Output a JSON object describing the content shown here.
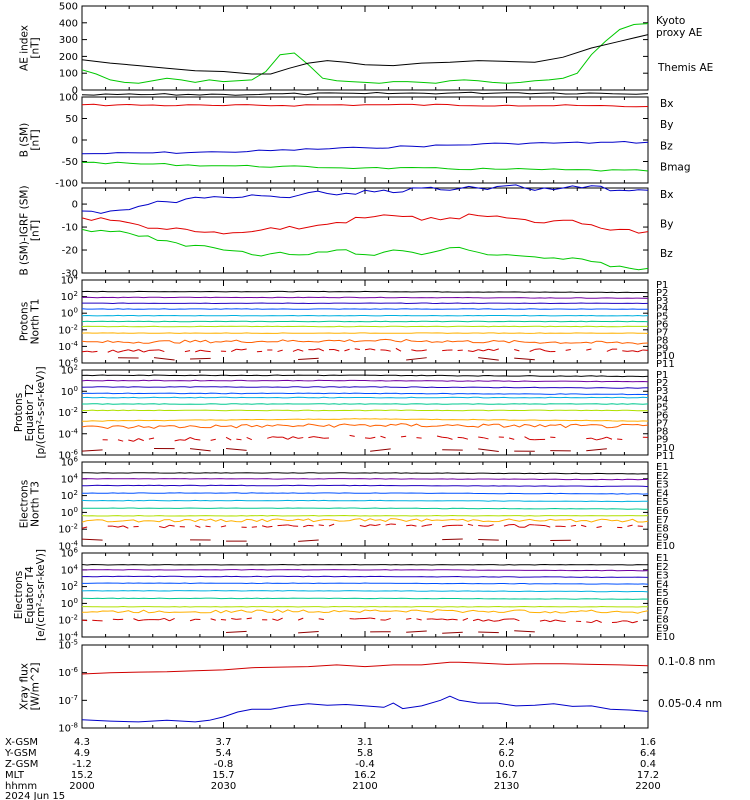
{
  "chart_data": [
    {
      "type": "line",
      "ylabel": "AE index\n[nT]",
      "ylim": [
        0,
        500
      ],
      "yticks": [
        "0",
        "100",
        "200",
        "300",
        "400",
        "500"
      ],
      "series": [
        {
          "name": "Kyoto proxy AE",
          "color": "#00c800",
          "x": [
            0,
            3,
            6,
            9,
            12,
            15,
            18,
            21,
            24,
            27,
            30,
            33,
            36,
            39,
            42,
            45,
            48,
            51,
            54,
            57,
            60,
            63,
            66,
            69,
            72,
            75,
            78,
            81,
            84,
            87,
            90,
            93,
            96,
            99,
            102,
            105,
            108,
            111,
            114,
            117,
            120
          ],
          "values": [
            120,
            95,
            60,
            45,
            40,
            55,
            70,
            60,
            45,
            60,
            50,
            55,
            60,
            110,
            210,
            220,
            150,
            70,
            55,
            50,
            45,
            40,
            50,
            50,
            45,
            40,
            55,
            60,
            55,
            45,
            40,
            45,
            55,
            60,
            70,
            100,
            210,
            290,
            360,
            390,
            395
          ]
        },
        {
          "name": "Themis AE",
          "color": "#000000",
          "x": [
            0,
            6,
            12,
            18,
            24,
            30,
            36,
            40,
            44,
            48,
            52,
            56,
            60,
            66,
            72,
            78,
            84,
            90,
            96,
            102,
            108,
            114,
            120
          ],
          "values": [
            180,
            160,
            145,
            130,
            115,
            110,
            95,
            95,
            130,
            160,
            175,
            165,
            150,
            145,
            160,
            165,
            175,
            170,
            165,
            195,
            250,
            290,
            330
          ]
        }
      ]
    },
    {
      "type": "line",
      "ylabel": "B (SM)\n[nT]",
      "ylim": [
        -100,
        100
      ],
      "yticks": [
        "-100",
        "-50",
        "0",
        "50",
        "100"
      ],
      "series": [
        {
          "name": "Bx",
          "color": "#0000c8",
          "x": [
            0,
            30,
            60,
            90,
            120
          ],
          "values": [
            -32,
            -28,
            -18,
            -8,
            -5
          ]
        },
        {
          "name": "By",
          "color": "#e00000",
          "x": [
            0,
            30,
            60,
            90,
            120
          ],
          "values": [
            82,
            80,
            82,
            81,
            78
          ]
        },
        {
          "name": "Bz",
          "color": "#00c800",
          "x": [
            0,
            30,
            60,
            90,
            120
          ],
          "values": [
            -52,
            -60,
            -65,
            -68,
            -72
          ]
        },
        {
          "name": "Bmag",
          "color": "#000000",
          "x": [
            0,
            30,
            60,
            90,
            120
          ],
          "values": [
            105,
            106,
            108,
            110,
            108
          ]
        }
      ]
    },
    {
      "type": "line",
      "ylabel": "B (SM)-IGRF (SM)\n[nT]",
      "ylim": [
        -30,
        7
      ],
      "yticks": [
        "-30",
        "-20",
        "-10",
        "0"
      ],
      "series": [
        {
          "name": "Bx",
          "color": "#0000c8",
          "x": [
            0,
            6,
            12,
            18,
            24,
            30,
            36,
            42,
            48,
            54,
            60,
            66,
            72,
            78,
            84,
            90,
            96,
            102,
            108,
            114,
            120
          ],
          "values": [
            -3,
            -3,
            -1,
            1,
            3,
            3,
            4,
            3,
            5,
            4,
            6,
            5,
            7,
            6,
            7,
            8,
            6,
            7,
            8,
            6,
            6
          ]
        },
        {
          "name": "By",
          "color": "#e00000",
          "x": [
            0,
            6,
            12,
            18,
            24,
            30,
            36,
            42,
            48,
            54,
            60,
            66,
            72,
            78,
            84,
            90,
            96,
            102,
            108,
            114,
            120
          ],
          "values": [
            -6,
            -7,
            -9,
            -11,
            -12,
            -13,
            -12,
            -11,
            -10,
            -8,
            -6,
            -5,
            -7,
            -6,
            -5,
            -6,
            -8,
            -7,
            -9,
            -11,
            -12
          ]
        },
        {
          "name": "Bz",
          "color": "#00c800",
          "x": [
            0,
            6,
            12,
            18,
            24,
            30,
            36,
            42,
            48,
            54,
            60,
            66,
            72,
            78,
            84,
            90,
            96,
            102,
            108,
            114,
            120
          ],
          "values": [
            -11,
            -12,
            -14,
            -16,
            -18,
            -20,
            -22,
            -21,
            -22,
            -20,
            -22,
            -20,
            -22,
            -19,
            -21,
            -22,
            -23,
            -24,
            -25,
            -27,
            -28
          ]
        }
      ]
    },
    {
      "type": "line",
      "ylabel": "Protons\nNorth T1",
      "ylim_log": [
        -6,
        4
      ],
      "yticks": [
        "10^-6",
        "10^-4",
        "10^-2",
        "10^0",
        "10^2",
        "10^4"
      ],
      "series": [
        {
          "name": "P1",
          "color": "#000000",
          "log_values": [
            2.6,
            2.6,
            2.5
          ]
        },
        {
          "name": "P2",
          "color": "#7000a0",
          "log_values": [
            1.9,
            1.9,
            1.8
          ]
        },
        {
          "name": "P3",
          "color": "#2000c0",
          "log_values": [
            1.2,
            1.2,
            1.2
          ]
        },
        {
          "name": "P4",
          "color": "#0050ff",
          "log_values": [
            0.5,
            0.5,
            0.5
          ]
        },
        {
          "name": "P5",
          "color": "#00b0e0",
          "log_values": [
            -0.3,
            -0.3,
            -0.3
          ]
        },
        {
          "name": "P6",
          "color": "#00c890",
          "log_values": [
            -1.0,
            -1.0,
            -1.0
          ]
        },
        {
          "name": "P7",
          "color": "#b0e000",
          "log_values": [
            -1.6,
            -1.6,
            -1.6
          ]
        },
        {
          "name": "P8",
          "color": "#ffb000",
          "log_values": [
            -2.4,
            -2.4,
            -2.4
          ]
        },
        {
          "name": "P9",
          "color": "#ff6000",
          "log_values": [
            -3.5,
            -3.3,
            -3.6
          ]
        },
        {
          "name": "P10",
          "color": "#d00000",
          "log_values": [
            -4.6,
            -4.4,
            -4.5
          ]
        },
        {
          "name": "P11",
          "color": "#900000",
          "log_values": [
            -5.5,
            -5.5,
            -5.5
          ]
        }
      ]
    },
    {
      "type": "line",
      "ylabel": "Protons\nEquator T2\n[p/(cm²-s-sr-keV)]",
      "ylim_log": [
        -6,
        2
      ],
      "yticks": [
        "10^-6",
        "10^-4",
        "10^-2",
        "10^0",
        "10^2"
      ],
      "series": [
        {
          "name": "P1",
          "color": "#000000",
          "log_values": [
            1.5,
            1.5,
            1.4
          ]
        },
        {
          "name": "P2",
          "color": "#7000a0",
          "log_values": [
            1.0,
            1.0,
            0.9
          ]
        },
        {
          "name": "P3",
          "color": "#2000c0",
          "log_values": [
            0.4,
            0.4,
            0.3
          ]
        },
        {
          "name": "P4",
          "color": "#0050ff",
          "log_values": [
            -0.2,
            -0.2,
            -0.3
          ]
        },
        {
          "name": "P5",
          "color": "#00b0e0",
          "log_values": [
            -0.6,
            -0.6,
            -0.6
          ]
        },
        {
          "name": "P6",
          "color": "#00c890",
          "log_values": [
            -1.2,
            -1.2,
            -1.2
          ]
        },
        {
          "name": "P7",
          "color": "#b0e000",
          "log_values": [
            -1.8,
            -1.8,
            -1.8
          ]
        },
        {
          "name": "P8",
          "color": "#ffb000",
          "log_values": [
            -2.8,
            -2.6,
            -2.8
          ]
        },
        {
          "name": "P9",
          "color": "#ff6000",
          "log_values": [
            -3.4,
            -3.2,
            -3.3
          ]
        },
        {
          "name": "P10",
          "color": "#d00000",
          "log_values": [
            -4.6,
            -4.3,
            -4.5
          ]
        },
        {
          "name": "P11",
          "color": "#900000",
          "log_values": [
            -5.5,
            -5.5,
            -5.5
          ]
        }
      ]
    },
    {
      "type": "line",
      "ylabel": "Electrons\nNorth T3",
      "ylim_log": [
        -4,
        6
      ],
      "yticks": [
        "10^-4",
        "10^-2",
        "10^0",
        "10^2",
        "10^4",
        "10^6"
      ],
      "series": [
        {
          "name": "E1",
          "color": "#000000",
          "log_values": [
            4.7,
            4.7,
            4.6
          ]
        },
        {
          "name": "E2",
          "color": "#7000a0",
          "log_values": [
            4.0,
            4.0,
            3.9
          ]
        },
        {
          "name": "E3",
          "color": "#2000c0",
          "log_values": [
            3.2,
            3.2,
            3.1
          ]
        },
        {
          "name": "E4",
          "color": "#0050ff",
          "log_values": [
            2.3,
            2.3,
            2.2
          ]
        },
        {
          "name": "E5",
          "color": "#00b0e0",
          "log_values": [
            1.4,
            1.4,
            1.3
          ]
        },
        {
          "name": "E6",
          "color": "#00c890",
          "log_values": [
            0.5,
            0.5,
            0.4
          ]
        },
        {
          "name": "E7",
          "color": "#b0e000",
          "log_values": [
            -0.4,
            -0.4,
            -0.4
          ]
        },
        {
          "name": "E8",
          "color": "#ffb000",
          "log_values": [
            -1.0,
            -0.9,
            -1.0
          ]
        },
        {
          "name": "E9",
          "color": "#d00000",
          "log_values": [
            -1.8,
            -1.5,
            -1.7
          ]
        },
        {
          "name": "E10",
          "color": "#900000",
          "log_values": [
            -3.3,
            -3.3,
            -3.3
          ]
        }
      ]
    },
    {
      "type": "line",
      "ylabel": "Electrons\nEquator T4\n[e/(cm²-s-sr-keV)]",
      "ylim_log": [
        -4,
        6
      ],
      "yticks": [
        "10^-4",
        "10^-2",
        "10^0",
        "10^2",
        "10^4",
        "10^6"
      ],
      "series": [
        {
          "name": "E1",
          "color": "#000000",
          "log_values": [
            4.6,
            4.6,
            4.6
          ]
        },
        {
          "name": "E2",
          "color": "#7000a0",
          "log_values": [
            4.0,
            4.0,
            3.9
          ]
        },
        {
          "name": "E3",
          "color": "#2000c0",
          "log_values": [
            3.2,
            3.2,
            3.1
          ]
        },
        {
          "name": "E4",
          "color": "#0050ff",
          "log_values": [
            2.4,
            2.4,
            2.3
          ]
        },
        {
          "name": "E5",
          "color": "#00b0e0",
          "log_values": [
            1.5,
            1.5,
            1.4
          ]
        },
        {
          "name": "E6",
          "color": "#00c890",
          "log_values": [
            0.6,
            0.6,
            0.5
          ]
        },
        {
          "name": "E7",
          "color": "#b0e000",
          "log_values": [
            -0.4,
            -0.4,
            -0.4
          ]
        },
        {
          "name": "E8",
          "color": "#ffb000",
          "log_values": [
            -1.0,
            -0.9,
            -1.0
          ]
        },
        {
          "name": "E9",
          "color": "#d00000",
          "log_values": [
            -2.0,
            -1.8,
            -2.2
          ]
        },
        {
          "name": "E10",
          "color": "#900000",
          "log_values": [
            -3.4,
            -3.4,
            -3.4
          ]
        }
      ]
    },
    {
      "type": "line",
      "ylabel": "Xray flux\n[W/m^2]",
      "ylim_log": [
        -8,
        -5
      ],
      "yticks": [
        "10^-8",
        "10^-7",
        "10^-6",
        "10^-5"
      ],
      "series": [
        {
          "name": "0.1-0.8 nm",
          "color": "#d00000",
          "x": [
            0,
            6,
            12,
            18,
            24,
            30,
            36,
            42,
            48,
            54,
            60,
            66,
            72,
            78,
            80,
            84,
            90,
            96,
            102,
            108,
            114,
            120
          ],
          "log_values": [
            -6.05,
            -6.0,
            -5.98,
            -5.97,
            -5.93,
            -5.9,
            -5.82,
            -5.8,
            -5.78,
            -5.72,
            -5.78,
            -5.72,
            -5.72,
            -5.62,
            -5.62,
            -5.65,
            -5.7,
            -5.68,
            -5.68,
            -5.7,
            -5.72,
            -5.75
          ]
        },
        {
          "name": "0.05-0.4 nm",
          "color": "#0000c8",
          "x": [
            0,
            6,
            12,
            18,
            24,
            27,
            30,
            33,
            36,
            40,
            44,
            48,
            52,
            56,
            60,
            64,
            66,
            68,
            72,
            76,
            78,
            80,
            84,
            88,
            92,
            96,
            100,
            104,
            108,
            112,
            116,
            120
          ],
          "log_values": [
            -7.7,
            -7.75,
            -7.78,
            -7.72,
            -7.78,
            -7.72,
            -7.6,
            -7.42,
            -7.32,
            -7.32,
            -7.2,
            -7.12,
            -7.18,
            -7.15,
            -7.2,
            -7.25,
            -7.1,
            -7.3,
            -7.2,
            -7.0,
            -6.85,
            -7.0,
            -7.1,
            -7.1,
            -7.2,
            -7.18,
            -7.12,
            -7.22,
            -7.2,
            -7.32,
            -7.35,
            -7.4
          ]
        }
      ]
    }
  ],
  "xaxis": {
    "row_labels": [
      "X-GSM",
      "Y-GSM",
      "Z-GSM",
      "MLT",
      "hhmm"
    ],
    "ticks": [
      {
        "x-gsm": "4.3",
        "y-gsm": "4.9",
        "z-gsm": "-1.2",
        "mlt": "15.2",
        "hhmm": "2000"
      },
      {
        "x-gsm": "3.7",
        "y-gsm": "5.4",
        "z-gsm": "-0.8",
        "mlt": "15.7",
        "hhmm": "2030"
      },
      {
        "x-gsm": "3.1",
        "y-gsm": "5.8",
        "z-gsm": "-0.4",
        "mlt": "16.2",
        "hhmm": "2100"
      },
      {
        "x-gsm": "2.4",
        "y-gsm": "6.2",
        "z-gsm": "0.0",
        "mlt": "16.7",
        "hhmm": "2130"
      },
      {
        "x-gsm": "1.6",
        "y-gsm": "6.4",
        "z-gsm": "0.4",
        "mlt": "17.2",
        "hhmm": "2200"
      }
    ],
    "date": "2024 Jun 15"
  }
}
